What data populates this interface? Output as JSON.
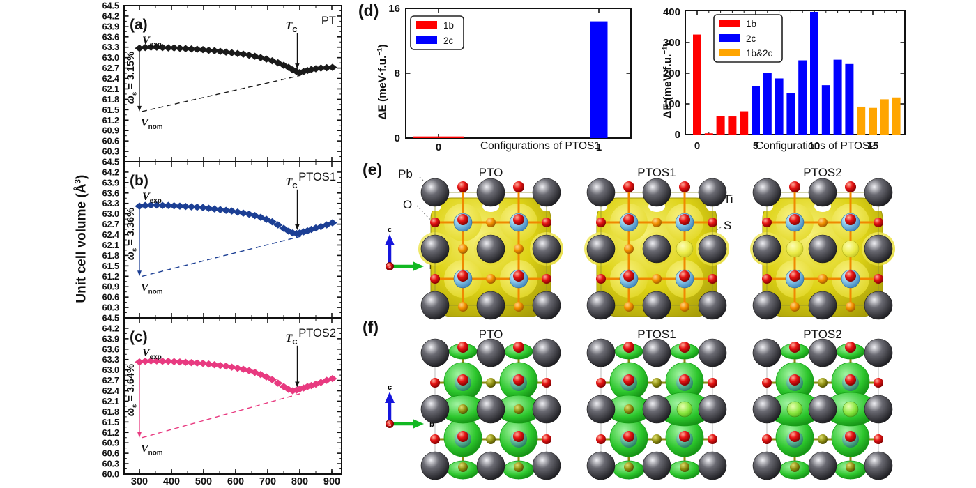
{
  "colors": {
    "pt": "#1a1a1a",
    "ptos1": "#1c3f94",
    "ptos2": "#e83a80",
    "bar_1b": "#ff0000",
    "bar_2c": "#0000ff",
    "bar_1b2c": "#ffa500",
    "iso_yellow": "#ded316",
    "iso_green": "#2cc62c"
  },
  "volume_figure": {
    "ylabel_main": "Unit cell volume (Å",
    "ylabel_sup": "3",
    "ylabel_close": ")",
    "yticks": [
      "64.5",
      "64.2",
      "63.9",
      "63.6",
      "63.3",
      "63.0",
      "62.7",
      "62.4",
      "62.1",
      "61.8",
      "61.5",
      "61.2",
      "60.9",
      "60.6",
      "60.3",
      "60.0"
    ],
    "xticks": [
      "300",
      "400",
      "500",
      "600",
      "700",
      "800",
      "900"
    ]
  },
  "chart_data": [
    {
      "type": "line",
      "panel_label": "(a)",
      "title": "PT",
      "color": "#1a1a1a",
      "ylabel": "Unit cell volume (Å³)",
      "xlim": [
        252,
        930
      ],
      "ylim": [
        60.0,
        64.5
      ],
      "v_exp_label": {
        "main": "V",
        "sub": "exp"
      },
      "v_nom_label": {
        "main": "V",
        "sub": "nom"
      },
      "tc_label": {
        "main": "T",
        "sub": "C"
      },
      "omega_value": "3.15%",
      "v_nom": 61.45,
      "vmin": 62.57,
      "tc_x": 790,
      "points": [
        [
          300,
          63.27
        ],
        [
          318,
          63.29
        ],
        [
          336,
          63.3
        ],
        [
          354,
          63.3
        ],
        [
          372,
          63.29
        ],
        [
          390,
          63.28
        ],
        [
          408,
          63.28
        ],
        [
          426,
          63.27
        ],
        [
          444,
          63.26
        ],
        [
          462,
          63.25
        ],
        [
          480,
          63.24
        ],
        [
          498,
          63.23
        ],
        [
          516,
          63.21
        ],
        [
          534,
          63.2
        ],
        [
          552,
          63.18
        ],
        [
          570,
          63.16
        ],
        [
          588,
          63.14
        ],
        [
          606,
          63.12
        ],
        [
          624,
          63.1
        ],
        [
          642,
          63.07
        ],
        [
          660,
          63.04
        ],
        [
          678,
          63.0
        ],
        [
          696,
          62.96
        ],
        [
          714,
          62.91
        ],
        [
          732,
          62.85
        ],
        [
          750,
          62.78
        ],
        [
          765,
          62.72
        ],
        [
          778,
          62.65
        ],
        [
          790,
          62.6
        ],
        [
          800,
          62.57
        ],
        [
          812,
          62.6
        ],
        [
          824,
          62.63
        ],
        [
          836,
          62.66
        ],
        [
          850,
          62.68
        ],
        [
          866,
          62.7
        ],
        [
          884,
          62.71
        ],
        [
          902,
          62.72
        ]
      ]
    },
    {
      "type": "line",
      "panel_label": "(b)",
      "title": "PTOS1",
      "color": "#1c3f94",
      "ylabel": "Unit cell volume (Å³)",
      "xlim": [
        252,
        930
      ],
      "ylim": [
        60.0,
        64.5
      ],
      "v_exp_label": {
        "main": "V",
        "sub": "exp"
      },
      "v_nom_label": {
        "main": "V",
        "sub": "nom"
      },
      "tc_label": {
        "main": "T",
        "sub": "C"
      },
      "omega_value": "3.36%",
      "v_nom": 61.2,
      "vmin": 62.43,
      "tc_x": 790,
      "points": [
        [
          300,
          63.22
        ],
        [
          318,
          63.24
        ],
        [
          336,
          63.25
        ],
        [
          354,
          63.25
        ],
        [
          372,
          63.24
        ],
        [
          390,
          63.24
        ],
        [
          408,
          63.23
        ],
        [
          426,
          63.22
        ],
        [
          444,
          63.21
        ],
        [
          462,
          63.2
        ],
        [
          480,
          63.19
        ],
        [
          498,
          63.18
        ],
        [
          516,
          63.16
        ],
        [
          534,
          63.14
        ],
        [
          552,
          63.12
        ],
        [
          570,
          63.1
        ],
        [
          588,
          63.08
        ],
        [
          606,
          63.05
        ],
        [
          624,
          63.02
        ],
        [
          642,
          62.99
        ],
        [
          660,
          62.95
        ],
        [
          678,
          62.9
        ],
        [
          696,
          62.84
        ],
        [
          714,
          62.77
        ],
        [
          732,
          62.68
        ],
        [
          750,
          62.58
        ],
        [
          765,
          62.5
        ],
        [
          778,
          62.45
        ],
        [
          790,
          62.43
        ],
        [
          800,
          62.45
        ],
        [
          812,
          62.48
        ],
        [
          824,
          62.51
        ],
        [
          836,
          62.55
        ],
        [
          850,
          62.59
        ],
        [
          866,
          62.63
        ],
        [
          884,
          62.68
        ],
        [
          902,
          62.74
        ]
      ]
    },
    {
      "type": "line",
      "panel_label": "(c)",
      "title": "PTOS2",
      "color": "#e83a80",
      "ylabel": "Unit cell volume (Å³)",
      "xlim": [
        252,
        930
      ],
      "ylim": [
        60.0,
        64.5
      ],
      "v_exp_label": {
        "main": "V",
        "sub": "exp"
      },
      "v_nom_label": {
        "main": "V",
        "sub": "nom"
      },
      "tc_label": {
        "main": "T",
        "sub": "C"
      },
      "omega_value": "3.64%",
      "v_nom": 61.05,
      "vmin": 62.4,
      "tc_x": 790,
      "points": [
        [
          300,
          63.23
        ],
        [
          318,
          63.25
        ],
        [
          336,
          63.26
        ],
        [
          354,
          63.26
        ],
        [
          372,
          63.25
        ],
        [
          390,
          63.25
        ],
        [
          408,
          63.24
        ],
        [
          426,
          63.23
        ],
        [
          444,
          63.22
        ],
        [
          462,
          63.21
        ],
        [
          480,
          63.2
        ],
        [
          498,
          63.19
        ],
        [
          516,
          63.17
        ],
        [
          534,
          63.15
        ],
        [
          552,
          63.13
        ],
        [
          570,
          63.11
        ],
        [
          588,
          63.08
        ],
        [
          606,
          63.05
        ],
        [
          624,
          63.02
        ],
        [
          642,
          62.98
        ],
        [
          660,
          62.93
        ],
        [
          678,
          62.87
        ],
        [
          696,
          62.8
        ],
        [
          714,
          62.72
        ],
        [
          732,
          62.62
        ],
        [
          750,
          62.52
        ],
        [
          765,
          62.44
        ],
        [
          778,
          62.4
        ],
        [
          790,
          62.42
        ],
        [
          800,
          62.45
        ],
        [
          812,
          62.48
        ],
        [
          824,
          62.52
        ],
        [
          836,
          62.55
        ],
        [
          850,
          62.59
        ],
        [
          866,
          62.64
        ],
        [
          884,
          62.7
        ],
        [
          902,
          62.75
        ]
      ]
    },
    {
      "type": "bar",
      "panel_label": "(d)",
      "xlabel": "Configurations of PTOS1",
      "ylabel_main": "ΔE (meV·f.u.",
      "ylabel_sup": "−1",
      "ylabel_close": ")",
      "ylim": [
        0,
        16
      ],
      "yticks": [
        "0",
        "8",
        "16"
      ],
      "categories": [
        "0",
        "1"
      ],
      "bars": [
        {
          "category": "0",
          "series": "1b",
          "value": 0.2
        },
        {
          "category": "1",
          "series": "2c",
          "value": 14.4
        }
      ],
      "legend": [
        {
          "label": "1b",
          "color": "#ff0000"
        },
        {
          "label": "2c",
          "color": "#0000ff"
        }
      ]
    },
    {
      "type": "bar",
      "xlabel": "Configurations of PTOS2",
      "ylabel_main": "ΔE (meV·f.u.",
      "ylabel_sup": "−1",
      "ylabel_close": ")",
      "ylim": [
        0,
        400
      ],
      "yticks": [
        "0",
        "100",
        "200",
        "300",
        "400"
      ],
      "xticks": [
        "0",
        "5",
        "10",
        "15"
      ],
      "values": [
        326,
        4,
        61,
        59,
        76,
        159,
        200,
        183,
        135,
        242,
        400,
        161,
        244,
        230,
        91,
        87,
        115,
        121
      ],
      "series_of": [
        "1b",
        "1b",
        "1b",
        "1b",
        "1b",
        "2c",
        "2c",
        "2c",
        "2c",
        "2c",
        "2c",
        "2c",
        "2c",
        "2c",
        "1b&2c",
        "1b&2c",
        "1b&2c",
        "1b&2c"
      ],
      "legend": [
        {
          "label": "1b",
          "color": "#ff0000"
        },
        {
          "label": "2c",
          "color": "#0000ff"
        },
        {
          "label": "1b&2c",
          "color": "#ffa500"
        }
      ]
    }
  ],
  "panel_e": {
    "label": "(e)",
    "titles": [
      "PTO",
      "PTOS1",
      "PTOS2"
    ],
    "s_sites": [
      [],
      [
        1
      ],
      [
        0,
        1
      ]
    ],
    "atom_labels": {
      "pb": "Pb",
      "o": "O",
      "ti": "Ti",
      "s": "S"
    },
    "axes": {
      "up": "c",
      "right": "b",
      "origin": "a"
    }
  },
  "panel_f": {
    "label": "(f)",
    "titles": [
      "PTO",
      "PTOS1",
      "PTOS2"
    ],
    "s_sites": [
      [],
      [
        1
      ],
      [
        0,
        1
      ]
    ],
    "axes": {
      "up": "c",
      "right": "b",
      "origin": "a"
    }
  }
}
